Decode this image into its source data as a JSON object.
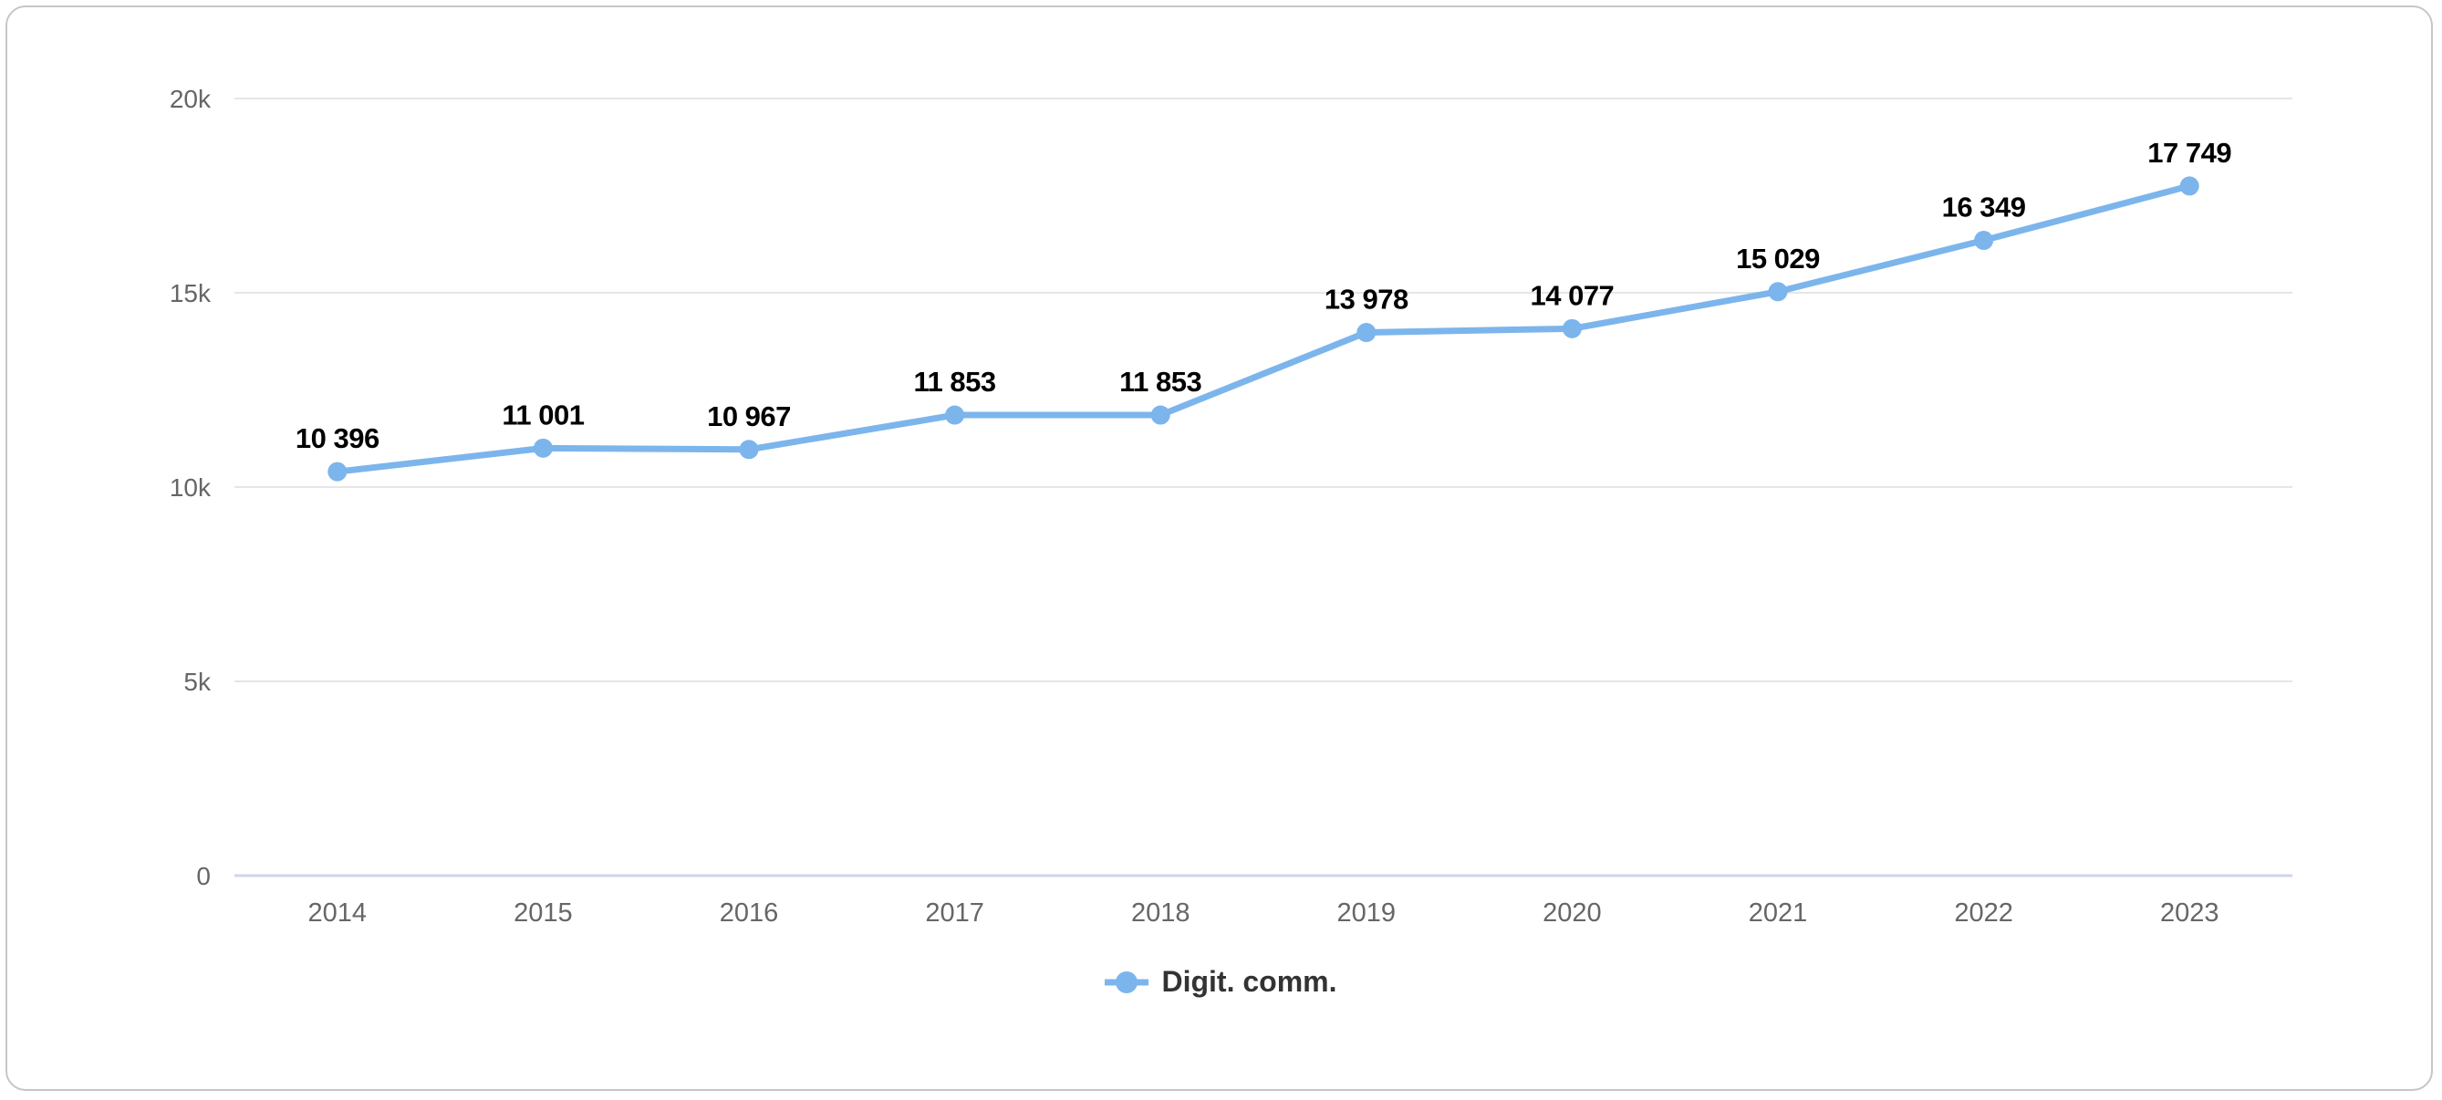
{
  "chart_data": {
    "type": "line",
    "title": "",
    "categories": [
      "2014",
      "2015",
      "2016",
      "2017",
      "2018",
      "2019",
      "2020",
      "2021",
      "2022",
      "2023"
    ],
    "series": [
      {
        "name": "Digit. comm.",
        "values": [
          10396,
          11001,
          10967,
          11853,
          11853,
          13978,
          14077,
          15029,
          16349,
          17749
        ],
        "value_labels": [
          "10 396",
          "11 001",
          "10 967",
          "11 853",
          "11 853",
          "13 978",
          "14 077",
          "15 029",
          "16 349",
          "17 749"
        ]
      }
    ],
    "yticks": [
      {
        "value": 0,
        "label": "0"
      },
      {
        "value": 5000,
        "label": "5k"
      },
      {
        "value": 10000,
        "label": "10k"
      },
      {
        "value": 15000,
        "label": "15k"
      },
      {
        "value": 20000,
        "label": "20k"
      }
    ],
    "ylim": [
      0,
      20000
    ],
    "xlabel": "",
    "ylabel": "",
    "grid": true,
    "legend_position": "bottom"
  },
  "legend": {
    "label": "Digit. comm."
  },
  "colors": {
    "series": "#7cb5ec",
    "grid": "#e6e6e6",
    "axis_line": "#ccd6eb",
    "tick_label": "#666666",
    "data_label": "#000000",
    "legend_text": "#333333"
  }
}
